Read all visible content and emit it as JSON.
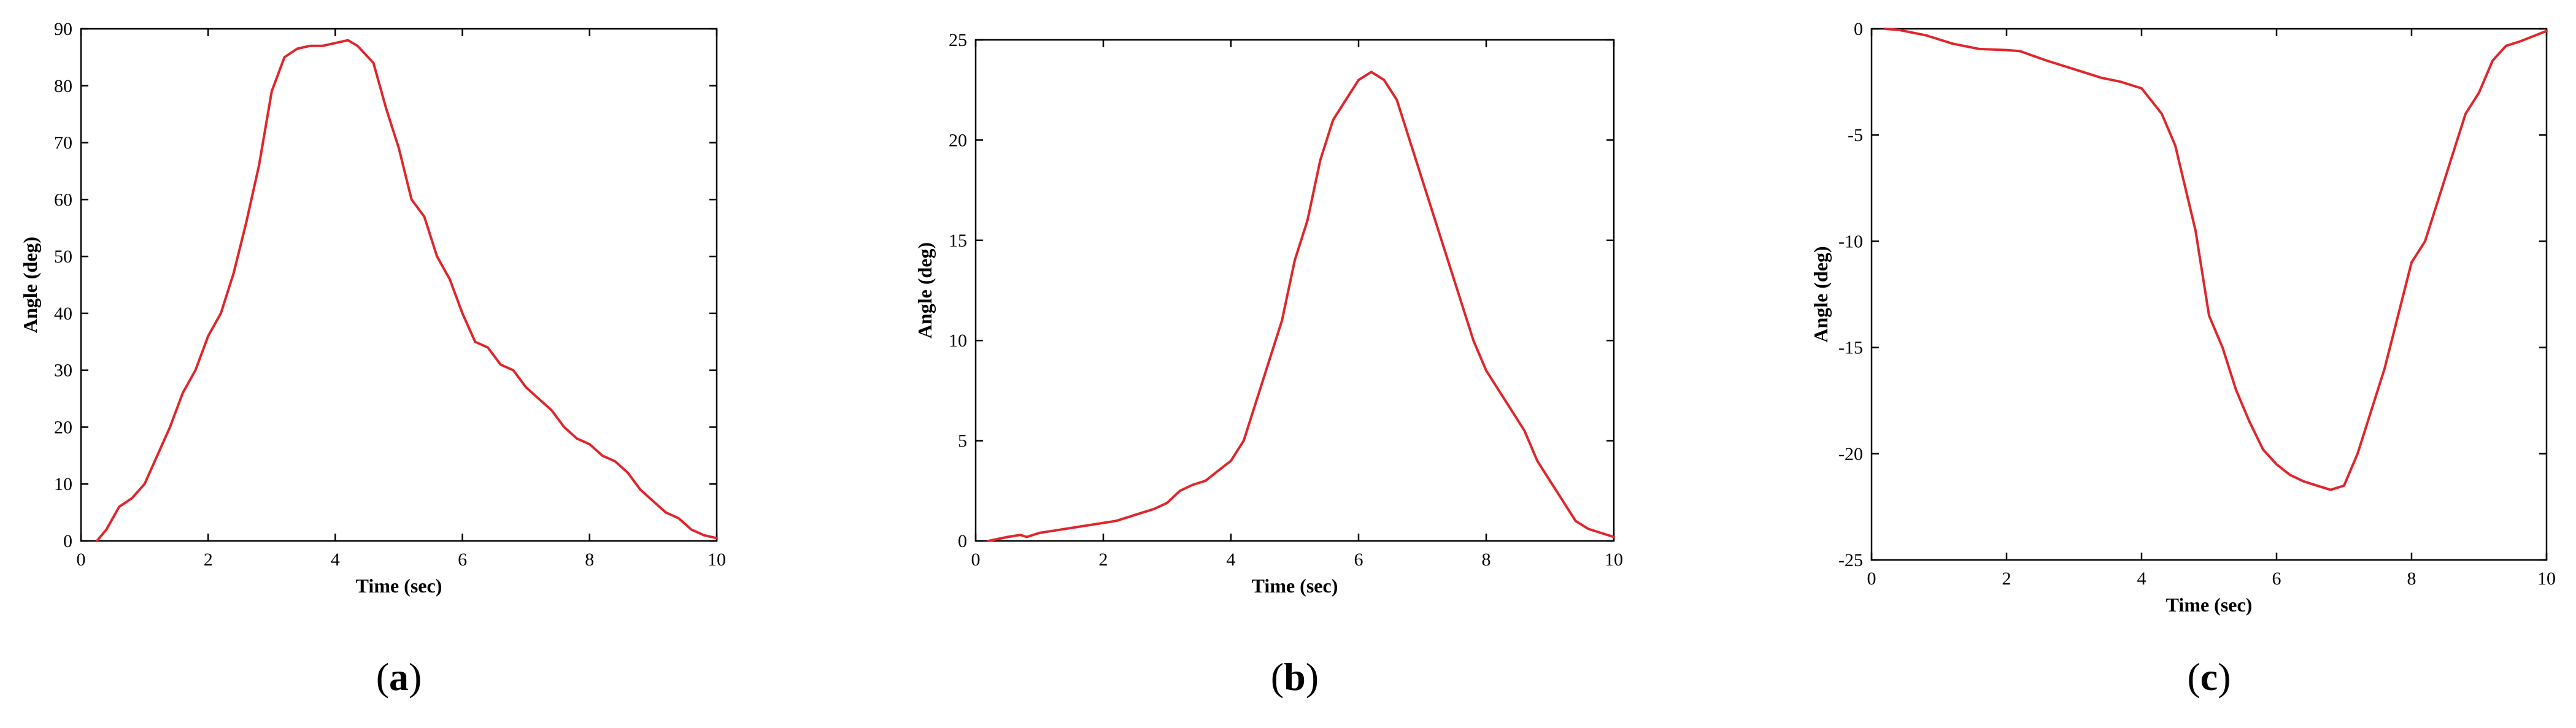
{
  "colors": {
    "line": "#e0262b",
    "axis": "#000000",
    "background": "#ffffff"
  },
  "chart_data": [
    {
      "type": "line",
      "panel_label": {
        "open": "(",
        "letter": "a",
        "close": ")"
      },
      "xlabel": "Time (sec)",
      "ylabel": "Angle (deg)",
      "xlim": [
        0,
        10
      ],
      "ylim": [
        0,
        90
      ],
      "xticks": [
        0,
        2,
        4,
        6,
        8,
        10
      ],
      "yticks": [
        0,
        10,
        20,
        30,
        40,
        50,
        60,
        70,
        80,
        90
      ],
      "grid": false,
      "series": [
        {
          "x": [
            0.25,
            0.4,
            0.6,
            0.8,
            1.0,
            1.2,
            1.4,
            1.6,
            1.8,
            2.0,
            2.2,
            2.4,
            2.6,
            2.8,
            3.0,
            3.2,
            3.4,
            3.6,
            3.8,
            4.0,
            4.2,
            4.35,
            4.6,
            4.8,
            5.0,
            5.2,
            5.4,
            5.6,
            5.8,
            6.0,
            6.2,
            6.4,
            6.6,
            6.8,
            7.0,
            7.2,
            7.4,
            7.6,
            7.8,
            8.0,
            8.2,
            8.4,
            8.6,
            8.8,
            9.0,
            9.2,
            9.4,
            9.6,
            9.8,
            10.0
          ],
          "y": [
            0,
            2,
            6,
            7.5,
            10,
            15,
            20,
            26,
            30,
            36,
            40,
            47,
            56,
            66,
            79,
            85,
            86.5,
            87,
            87,
            87.5,
            88,
            87,
            84,
            76,
            69,
            60,
            57,
            50,
            46,
            40,
            35,
            34,
            31,
            30,
            27,
            25,
            23,
            20,
            18,
            17,
            15,
            14,
            12,
            9,
            7,
            5,
            4,
            2,
            1,
            0.5
          ]
        }
      ]
    },
    {
      "type": "line",
      "panel_label": {
        "open": "(",
        "letter": "b",
        "close": ")"
      },
      "xlabel": "Time (sec)",
      "ylabel": "Angle (deg)",
      "xlim": [
        0,
        10
      ],
      "ylim": [
        0,
        25
      ],
      "xticks": [
        0,
        2,
        4,
        6,
        8,
        10
      ],
      "yticks": [
        0,
        5,
        10,
        15,
        20,
        25
      ],
      "grid": false,
      "series": [
        {
          "x": [
            0.2,
            0.5,
            0.7,
            0.8,
            1.0,
            1.2,
            1.4,
            1.6,
            1.8,
            2.0,
            2.2,
            2.4,
            2.6,
            2.8,
            3.0,
            3.2,
            3.4,
            3.6,
            3.8,
            4.0,
            4.2,
            4.4,
            4.6,
            4.8,
            5.0,
            5.2,
            5.4,
            5.6,
            5.8,
            6.0,
            6.2,
            6.4,
            6.6,
            6.8,
            7.0,
            7.2,
            7.4,
            7.6,
            7.8,
            8.0,
            8.3,
            8.6,
            8.8,
            9.0,
            9.2,
            9.4,
            9.6,
            10.0
          ],
          "y": [
            0,
            0.2,
            0.3,
            0.2,
            0.4,
            0.5,
            0.6,
            0.7,
            0.8,
            0.9,
            1.0,
            1.2,
            1.4,
            1.6,
            1.9,
            2.5,
            2.8,
            3.0,
            3.5,
            4.0,
            5.0,
            7.0,
            9.0,
            11.0,
            14.0,
            16.0,
            19.0,
            21.0,
            22.0,
            23.0,
            23.4,
            23.0,
            22.0,
            20.0,
            18.0,
            16.0,
            14.0,
            12.0,
            10.0,
            8.5,
            7.0,
            5.5,
            4.0,
            3.0,
            2.0,
            1.0,
            0.6,
            0.2
          ]
        }
      ]
    },
    {
      "type": "line",
      "panel_label": {
        "open": "(",
        "letter": "c",
        "close": ")"
      },
      "xlabel": "Time (sec)",
      "ylabel": "Angle (deg)",
      "xlim": [
        0,
        10
      ],
      "ylim": [
        -25,
        0
      ],
      "xticks": [
        0,
        2,
        4,
        6,
        8,
        10
      ],
      "yticks": [
        -25,
        -20,
        -15,
        -10,
        -5,
        0
      ],
      "grid": false,
      "series": [
        {
          "x": [
            0.2,
            0.4,
            0.8,
            1.2,
            1.6,
            2.0,
            2.2,
            2.6,
            3.0,
            3.4,
            3.7,
            4.0,
            4.1,
            4.3,
            4.5,
            4.8,
            5.0,
            5.2,
            5.4,
            5.6,
            5.8,
            6.0,
            6.2,
            6.4,
            6.6,
            6.8,
            7.0,
            7.2,
            7.4,
            7.6,
            7.8,
            8.0,
            8.2,
            8.4,
            8.6,
            8.8,
            9.0,
            9.2,
            9.4,
            9.6,
            10.0
          ],
          "y": [
            0,
            -0.05,
            -0.3,
            -0.7,
            -0.95,
            -1.0,
            -1.05,
            -1.5,
            -1.9,
            -2.3,
            -2.5,
            -2.8,
            -3.2,
            -4.0,
            -5.5,
            -9.5,
            -13.5,
            -15.0,
            -17.0,
            -18.5,
            -19.8,
            -20.5,
            -21.0,
            -21.3,
            -21.5,
            -21.7,
            -21.5,
            -20.0,
            -18.0,
            -16.0,
            -13.5,
            -11.0,
            -10.0,
            -8.0,
            -6.0,
            -4.0,
            -3.0,
            -1.5,
            -0.8,
            -0.6,
            -0.1
          ]
        }
      ]
    }
  ]
}
